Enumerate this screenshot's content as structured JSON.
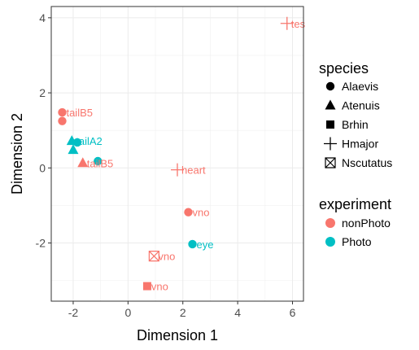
{
  "chart_data": {
    "type": "scatter",
    "title": "",
    "xlabel": "Dimension 1",
    "ylabel": "Dimension 2",
    "xlim": [
      -2.8,
      6.4
    ],
    "ylim": [
      -3.55,
      4.3
    ],
    "xticks": [
      -2,
      0,
      2,
      4,
      6
    ],
    "yticks": [
      -2,
      0,
      2,
      4
    ],
    "xtick_labels": [
      "-2",
      "0",
      "2",
      "4",
      "6"
    ],
    "ytick_labels": [
      "-2",
      "0",
      "2",
      "4"
    ],
    "grid": true,
    "points": [
      {
        "x": 5.8,
        "y": 3.85,
        "species": "Hmajor",
        "experiment": "nonPhoto",
        "label": "tes"
      },
      {
        "x": -2.4,
        "y": 1.48,
        "species": "Alaevis",
        "experiment": "nonPhoto",
        "label": "tailB5"
      },
      {
        "x": -2.4,
        "y": 1.25,
        "species": "Alaevis",
        "experiment": "nonPhoto",
        "label": ""
      },
      {
        "x": -2.05,
        "y": 0.72,
        "species": "Atenuis",
        "experiment": "Photo",
        "label": "tailA2"
      },
      {
        "x": -1.85,
        "y": 0.68,
        "species": "Alaevis",
        "experiment": "Photo",
        "label": ""
      },
      {
        "x": -2.0,
        "y": 0.48,
        "species": "Atenuis",
        "experiment": "Photo",
        "label": ""
      },
      {
        "x": -1.1,
        "y": 0.18,
        "species": "Alaevis",
        "experiment": "Photo",
        "label": ""
      },
      {
        "x": -1.65,
        "y": 0.13,
        "species": "Atenuis",
        "experiment": "nonPhoto",
        "label": "tailB5"
      },
      {
        "x": 1.8,
        "y": -0.05,
        "species": "Hmajor",
        "experiment": "nonPhoto",
        "label": "heart"
      },
      {
        "x": 2.2,
        "y": -1.18,
        "species": "Alaevis",
        "experiment": "nonPhoto",
        "label": "vno"
      },
      {
        "x": 2.35,
        "y": -2.03,
        "species": "Alaevis",
        "experiment": "Photo",
        "label": "eye"
      },
      {
        "x": 0.95,
        "y": -2.35,
        "species": "Nscutatus",
        "experiment": "nonPhoto",
        "label": "vno"
      },
      {
        "x": 0.7,
        "y": -3.15,
        "species": "Brhin",
        "experiment": "nonPhoto",
        "label": "vno"
      }
    ],
    "legend": {
      "species": {
        "title": "species",
        "items": [
          "Alaevis",
          "Atenuis",
          "Brhin",
          "Hmajor",
          "Nscutatus"
        ]
      },
      "experiment": {
        "title": "experiment",
        "items": [
          "nonPhoto",
          "Photo"
        ]
      }
    },
    "colors": {
      "nonPhoto": "#F8766D",
      "Photo": "#00BFC4"
    }
  }
}
